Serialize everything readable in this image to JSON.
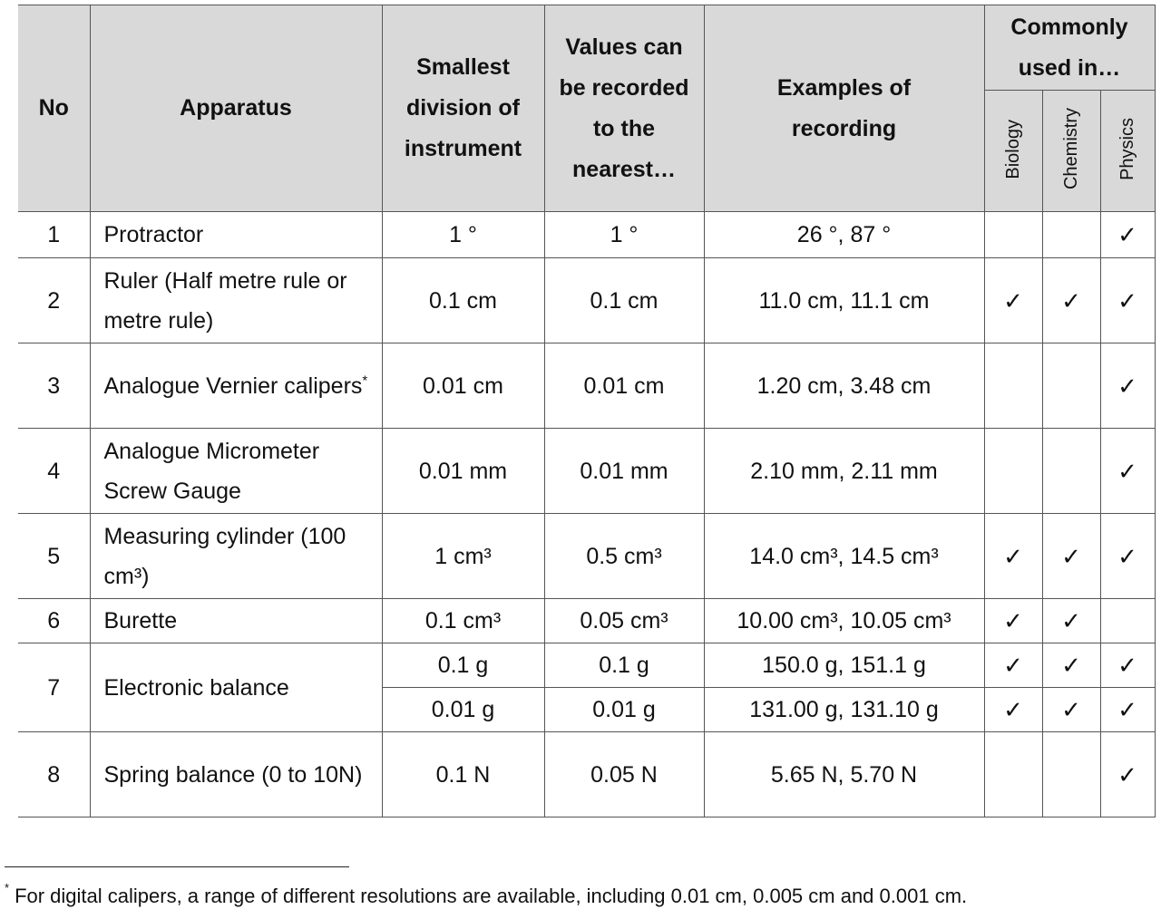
{
  "table": {
    "header": {
      "no": "No",
      "apparatus": "Apparatus",
      "smallest_division": "Smallest division of instrument",
      "recorded_to": "Values can be recorded to the nearest…",
      "examples": "Examples of recording",
      "commonly_used": "Commonly used in…",
      "subjects": [
        "Biology",
        "Chemistry",
        "Physics"
      ]
    },
    "rows": [
      {
        "no": "1",
        "apparatus": "Protractor",
        "readings": [
          {
            "smallest": "1 °",
            "nearest": "1 °",
            "examples": "26 °, 87 °",
            "used": [
              null,
              null,
              "✓"
            ]
          }
        ]
      },
      {
        "no": "2",
        "apparatus": "Ruler (Half metre rule or metre rule)",
        "readings": [
          {
            "smallest": "0.1 cm",
            "nearest": "0.1 cm",
            "examples": "11.0 cm, 11.1 cm",
            "used": [
              "✓",
              "✓",
              "✓"
            ]
          }
        ]
      },
      {
        "no": "3",
        "apparatus": "Analogue Vernier calipers",
        "apparatus_mark": "*",
        "readings": [
          {
            "smallest": "0.01 cm",
            "nearest": "0.01 cm",
            "examples": "1.20 cm, 3.48 cm",
            "used": [
              null,
              null,
              "✓"
            ]
          }
        ]
      },
      {
        "no": "4",
        "apparatus": "Analogue Micrometer Screw Gauge",
        "readings": [
          {
            "smallest": "0.01 mm",
            "nearest": "0.01 mm",
            "examples": "2.10 mm, 2.11 mm",
            "used": [
              null,
              null,
              "✓"
            ]
          }
        ]
      },
      {
        "no": "5",
        "apparatus": "Measuring cylinder (100 cm³)",
        "readings": [
          {
            "smallest": "1 cm³",
            "nearest": "0.5 cm³",
            "examples": "14.0 cm³, 14.5 cm³",
            "used": [
              "✓",
              "✓",
              "✓"
            ]
          }
        ]
      },
      {
        "no": "6",
        "apparatus": "Burette",
        "readings": [
          {
            "smallest": "0.1 cm³",
            "nearest": "0.05 cm³",
            "examples": "10.00 cm³, 10.05 cm³",
            "used": [
              "✓",
              "✓",
              null
            ]
          }
        ]
      },
      {
        "no": "7",
        "apparatus": "Electronic balance",
        "readings": [
          {
            "smallest": "0.1 g",
            "nearest": "0.1 g",
            "examples": "150.0 g, 151.1 g",
            "used": [
              "✓",
              "✓",
              "✓"
            ]
          },
          {
            "smallest": "0.01 g",
            "nearest": "0.01 g",
            "examples": "131.00 g, 131.10 g",
            "used": [
              "✓",
              "✓",
              "✓"
            ]
          }
        ]
      },
      {
        "no": "8",
        "apparatus": "Spring balance (0 to 10N)",
        "readings": [
          {
            "smallest": "0.1 N",
            "nearest": "0.05 N",
            "examples": "5.65 N, 5.70 N",
            "used": [
              null,
              null,
              "✓"
            ]
          }
        ]
      }
    ]
  },
  "footnote": {
    "mark": "*",
    "text": "For digital calipers, a range of different resolutions are available, including 0.01 cm, 0.005 cm and 0.001 cm."
  }
}
